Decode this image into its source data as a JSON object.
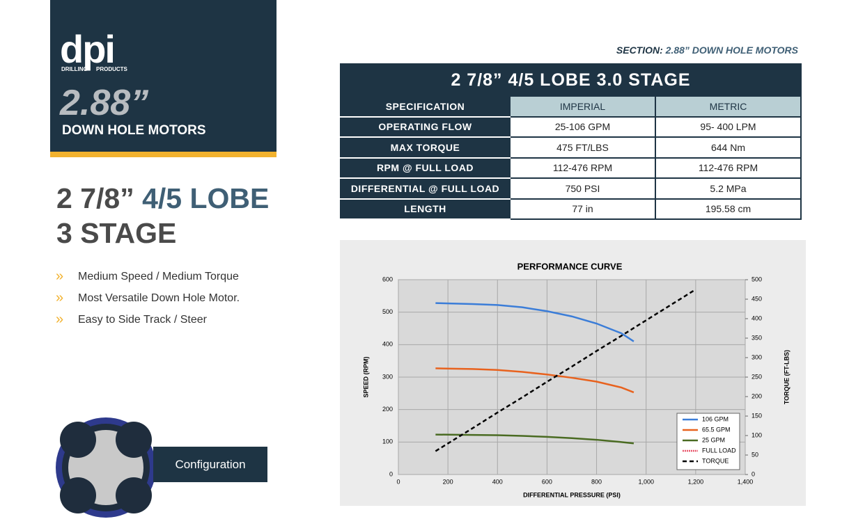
{
  "logo": {
    "brand": "dpi",
    "tagline_left": "DRILLING",
    "tagline_right": "PRODUCTS"
  },
  "header": {
    "size": "2.88”",
    "subtitle": "DOWN HOLE MOTORS"
  },
  "heading": {
    "line1_a": "2 7/8”",
    "line1_b": "4/5 LOBE",
    "line2": "3 STAGE"
  },
  "bullets": [
    "Medium Speed / Medium Torque",
    "Most Versatile Down Hole Motor.",
    "Easy to Side Track / Steer"
  ],
  "bullet_marker": "»",
  "configuration": "Configuration",
  "section": {
    "label": "SECTION:",
    "value": "2.88” DOWN HOLE MOTORS"
  },
  "table": {
    "title": "2 7/8” 4/5 LOBE  3.0 STAGE",
    "columns": [
      "SPECIFICATION",
      "IMPERIAL",
      "METRIC"
    ],
    "rows": [
      [
        "OPERATING FLOW",
        "25-106 GPM",
        "95- 400 LPM"
      ],
      [
        "MAX TORQUE",
        "475 FT/LBS",
        "644 Nm"
      ],
      [
        "RPM @ FULL LOAD",
        "112-476 RPM",
        "112-476 RPM"
      ],
      [
        "DIFFERENTIAL @ FULL LOAD",
        "750 PSI",
        "5.2 MPa"
      ],
      [
        "LENGTH",
        "77 in",
        "195.58 cm"
      ]
    ]
  },
  "chart_data": {
    "type": "line",
    "title": "PERFORMANCE CURVE",
    "x_label": "DIFFERENTIAL PRESSURE  (PSI)",
    "y_label": "SPEED  (RPM)",
    "y2_label": "TORQUE  (FT-LBS)",
    "x": [
      150,
      300,
      400,
      500,
      600,
      700,
      800,
      900,
      950,
      1200
    ],
    "series": [
      {
        "name": "106 GPM",
        "color": "#3b7dd8",
        "values": [
          528,
          525,
          522,
          515,
          503,
          487,
          465,
          435,
          410,
          null
        ]
      },
      {
        "name": "65.5 GPM",
        "color": "#e8621e",
        "values": [
          327,
          325,
          322,
          316,
          308,
          298,
          286,
          268,
          253,
          null
        ]
      },
      {
        "name": "25 GPM",
        "color": "#4a6b22",
        "values": [
          123,
          122,
          121,
          119,
          116,
          112,
          107,
          100,
          96,
          null
        ]
      },
      {
        "name": "FULL LOAD",
        "color": "#e8556a",
        "dash": "2,1",
        "values": [
          null,
          null,
          null,
          null,
          null,
          null,
          null,
          null,
          null,
          null
        ]
      },
      {
        "name": "TORQUE",
        "color": "#000000",
        "dash": "6,4",
        "axis": "y2",
        "values": [
          60,
          119,
          159,
          198,
          238,
          277,
          317,
          356,
          376,
          475
        ]
      }
    ],
    "xlim": [
      0,
      1400
    ],
    "xticks": [
      0,
      200,
      400,
      600,
      800,
      {
        "value": 1000,
        "label": "1,000"
      },
      {
        "value": 1200,
        "label": "1,200"
      },
      {
        "value": 1400,
        "label": "1,400"
      }
    ],
    "ylim": [
      0,
      600
    ],
    "yticks": [
      0,
      100,
      200,
      300,
      400,
      500,
      600
    ],
    "y2lim": [
      0,
      500
    ],
    "y2ticks": [
      0,
      50,
      100,
      150,
      200,
      250,
      300,
      350,
      400,
      450,
      500
    ],
    "grid": true,
    "legend": "lower right"
  }
}
